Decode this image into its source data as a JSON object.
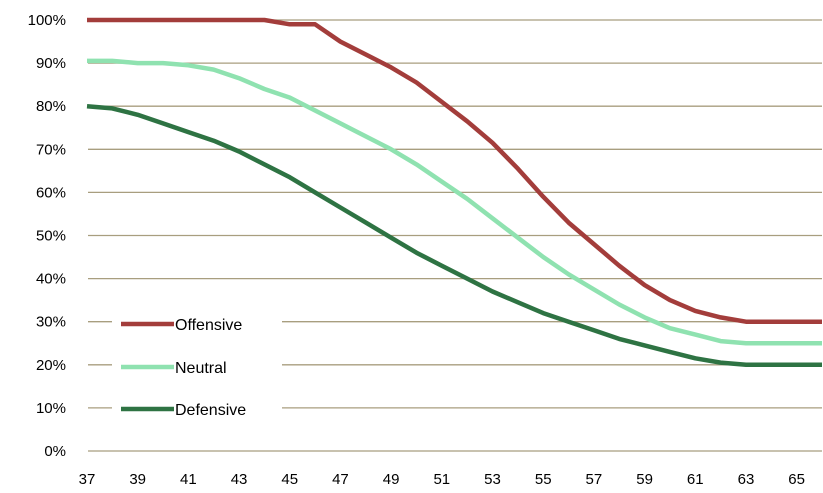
{
  "chart_data": {
    "type": "line",
    "title": "",
    "xlabel": "",
    "ylabel": "",
    "xlim": [
      37,
      66
    ],
    "ylim": [
      0,
      100
    ],
    "y_tick_values": [
      0,
      10,
      20,
      30,
      40,
      50,
      60,
      70,
      80,
      90,
      100
    ],
    "y_tick_labels": [
      "0%",
      "10%",
      "20%",
      "30%",
      "40%",
      "50%",
      "60%",
      "70%",
      "80%",
      "90%",
      "100%"
    ],
    "x_tick_values": [
      37,
      39,
      41,
      43,
      45,
      47,
      49,
      51,
      53,
      55,
      57,
      59,
      61,
      63,
      65
    ],
    "x_tick_labels": [
      "37",
      "39",
      "41",
      "43",
      "45",
      "47",
      "49",
      "51",
      "53",
      "55",
      "57",
      "59",
      "61",
      "63",
      "65"
    ],
    "grid": "horizontal",
    "legend_position": "bottom-left",
    "x": [
      37,
      38,
      39,
      40,
      41,
      42,
      43,
      44,
      45,
      46,
      47,
      48,
      49,
      50,
      51,
      52,
      53,
      54,
      55,
      56,
      57,
      58,
      59,
      60,
      61,
      62,
      63,
      64,
      65,
      66
    ],
    "series": [
      {
        "name": "Offensive",
        "color": "#a33d3b",
        "values": [
          100,
          100,
          100,
          100,
          100,
          100,
          100,
          100,
          99,
          99,
          95,
          92,
          89,
          85.5,
          81,
          76.5,
          71.5,
          65.5,
          59,
          53,
          48,
          43,
          38.5,
          35,
          32.5,
          31,
          30,
          30,
          30,
          30
        ]
      },
      {
        "name": "Neutral",
        "color": "#8fe2b0",
        "values": [
          90.5,
          90.5,
          90,
          90,
          89.5,
          88.5,
          86.5,
          84,
          82,
          79,
          76,
          73,
          70,
          66.5,
          62.5,
          58.5,
          54,
          49.5,
          45,
          41,
          37.5,
          34,
          31,
          28.5,
          27,
          25.5,
          25,
          25,
          25,
          25
        ]
      },
      {
        "name": "Defensive",
        "color": "#2e7343",
        "values": [
          80,
          79.5,
          78,
          76,
          74,
          72,
          69.5,
          66.5,
          63.5,
          60,
          56.5,
          53,
          49.5,
          46,
          43,
          40,
          37,
          34.5,
          32,
          30,
          28,
          26,
          24.5,
          23,
          21.5,
          20.5,
          20,
          20,
          20,
          20
        ]
      }
    ]
  }
}
